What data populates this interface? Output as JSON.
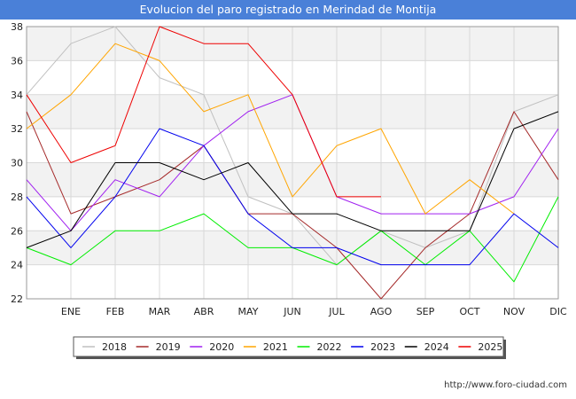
{
  "title": "Evolucion del paro registrado en Merindad de Montija",
  "footer_url": "http://www.foro-ciudad.com",
  "chart_data": {
    "type": "line",
    "title": "Evolucion del paro registrado en Merindad de Montija",
    "categories": [
      "",
      "ENE",
      "FEB",
      "MAR",
      "ABR",
      "MAY",
      "JUN",
      "JUL",
      "AGO",
      "SEP",
      "OCT",
      "NOV",
      "DIC"
    ],
    "ylim": [
      22,
      38
    ],
    "yticks": [
      22,
      24,
      26,
      28,
      30,
      32,
      34,
      36,
      38
    ],
    "grid": true,
    "legend_position": "bottom",
    "series": [
      {
        "name": "2018",
        "color": "#c0c0c0",
        "values": [
          34,
          37,
          38,
          35,
          34,
          28,
          27,
          24,
          26,
          25,
          26,
          33,
          34
        ]
      },
      {
        "name": "2019",
        "color": "#a52a2a",
        "values": [
          33,
          27,
          28,
          29,
          31,
          27,
          27,
          25,
          22,
          25,
          27,
          33,
          29
        ]
      },
      {
        "name": "2020",
        "color": "#a020f0",
        "values": [
          29,
          26,
          29,
          28,
          31,
          33,
          34,
          28,
          27,
          27,
          27,
          28,
          32
        ]
      },
      {
        "name": "2021",
        "color": "#ffa500",
        "values": [
          32,
          34,
          37,
          36,
          33,
          34,
          28,
          31,
          32,
          27,
          29,
          27,
          null
        ]
      },
      {
        "name": "2022",
        "color": "#00ee00",
        "values": [
          25,
          24,
          26,
          26,
          27,
          25,
          25,
          24,
          26,
          24,
          26,
          23,
          28
        ]
      },
      {
        "name": "2023",
        "color": "#0000ee",
        "values": [
          28,
          25,
          28,
          32,
          31,
          27,
          25,
          25,
          24,
          24,
          24,
          27,
          25
        ]
      },
      {
        "name": "2024",
        "color": "#000000",
        "values": [
          25,
          26,
          30,
          30,
          29,
          30,
          27,
          27,
          26,
          26,
          26,
          32,
          33
        ]
      },
      {
        "name": "2025",
        "color": "#ee0000",
        "values": [
          34,
          30,
          31,
          38,
          37,
          37,
          34,
          28,
          28,
          null,
          null,
          null,
          null
        ]
      }
    ]
  }
}
